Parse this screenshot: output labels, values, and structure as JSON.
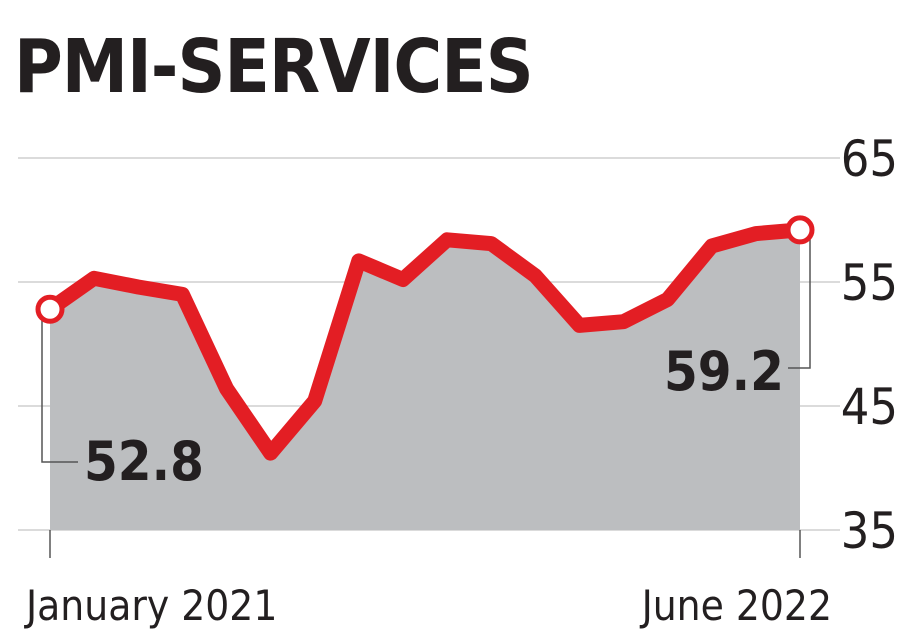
{
  "chart_data": {
    "type": "area",
    "title": "PMI-SERVICES",
    "xlabel": "",
    "ylabel": "",
    "x_tick_labels": [
      "January 2021",
      "June 2022"
    ],
    "x": [
      "Jan 2021",
      "Feb 2021",
      "Mar 2021",
      "Apr 2021",
      "May 2021",
      "Jun 2021",
      "Jul 2021",
      "Aug 2021",
      "Sep 2021",
      "Oct 2021",
      "Nov 2021",
      "Dec 2021",
      "Jan 2022",
      "Feb 2022",
      "Mar 2022",
      "Apr 2022",
      "May 2022",
      "Jun 2022"
    ],
    "series": [
      {
        "values": [
          52.8,
          55.3,
          54.6,
          54.0,
          46.4,
          41.2,
          45.4,
          56.7,
          55.2,
          58.4,
          58.1,
          55.5,
          51.5,
          51.8,
          53.6,
          57.9,
          58.9,
          59.2
        ]
      }
    ],
    "yticks": [
      35,
      45,
      55,
      65
    ],
    "ylim": [
      35,
      65
    ],
    "grid": true,
    "legend": "none",
    "annotations": [
      {
        "label": "52.8",
        "point": "first"
      },
      {
        "label": "59.2",
        "point": "last"
      }
    ],
    "colors": {
      "line": "#e31e24",
      "area": "#bcbec0",
      "grid": "#cfcfcf",
      "text": "#231f20"
    }
  }
}
